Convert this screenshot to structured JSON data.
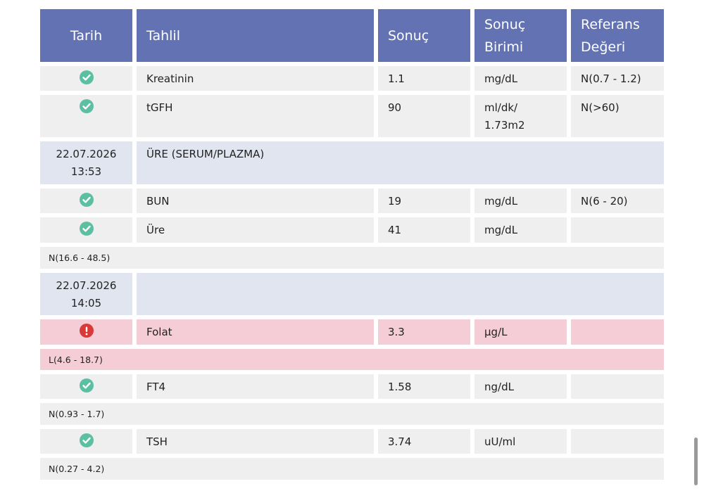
{
  "table": {
    "headers": [
      "Tarih",
      "Tahlil",
      "Sonuç",
      "Sonuç Birimi",
      "Referans Değeri"
    ],
    "rows": [
      {
        "test": "Kreatinin",
        "result": "1.1",
        "unit": "mg/dL",
        "reference": "N(0.7 - 1.2)"
      },
      {
        "test": "tGFH",
        "result": "90",
        "unit": "ml/dk/ 1.73m2",
        "reference": "N(>60)"
      },
      {
        "date": "22.07.2026 13:53",
        "panel": "ÜRE (SERUM/PLAZMA)"
      },
      {
        "test": "BUN",
        "result": "19",
        "unit": "mg/dL",
        "reference": "N(6 - 20)"
      },
      {
        "test": "Üre",
        "result": "41",
        "unit": "mg/dL"
      },
      {
        "note": "N(16.6 - 48.5)"
      },
      {
        "date": "22.07.2026 14:05"
      },
      {
        "test": "Folat",
        "result": "3.3",
        "unit": "µg/L"
      },
      {
        "note": "L(4.6 - 18.7)"
      },
      {
        "test": "FT4",
        "result": "1.58",
        "unit": "ng/dL"
      },
      {
        "note": "N(0.93 - 1.7)"
      },
      {
        "test": "TSH",
        "result": "3.74",
        "unit": "uU/ml"
      },
      {
        "note": "N(0.27 - 4.2)"
      }
    ]
  }
}
